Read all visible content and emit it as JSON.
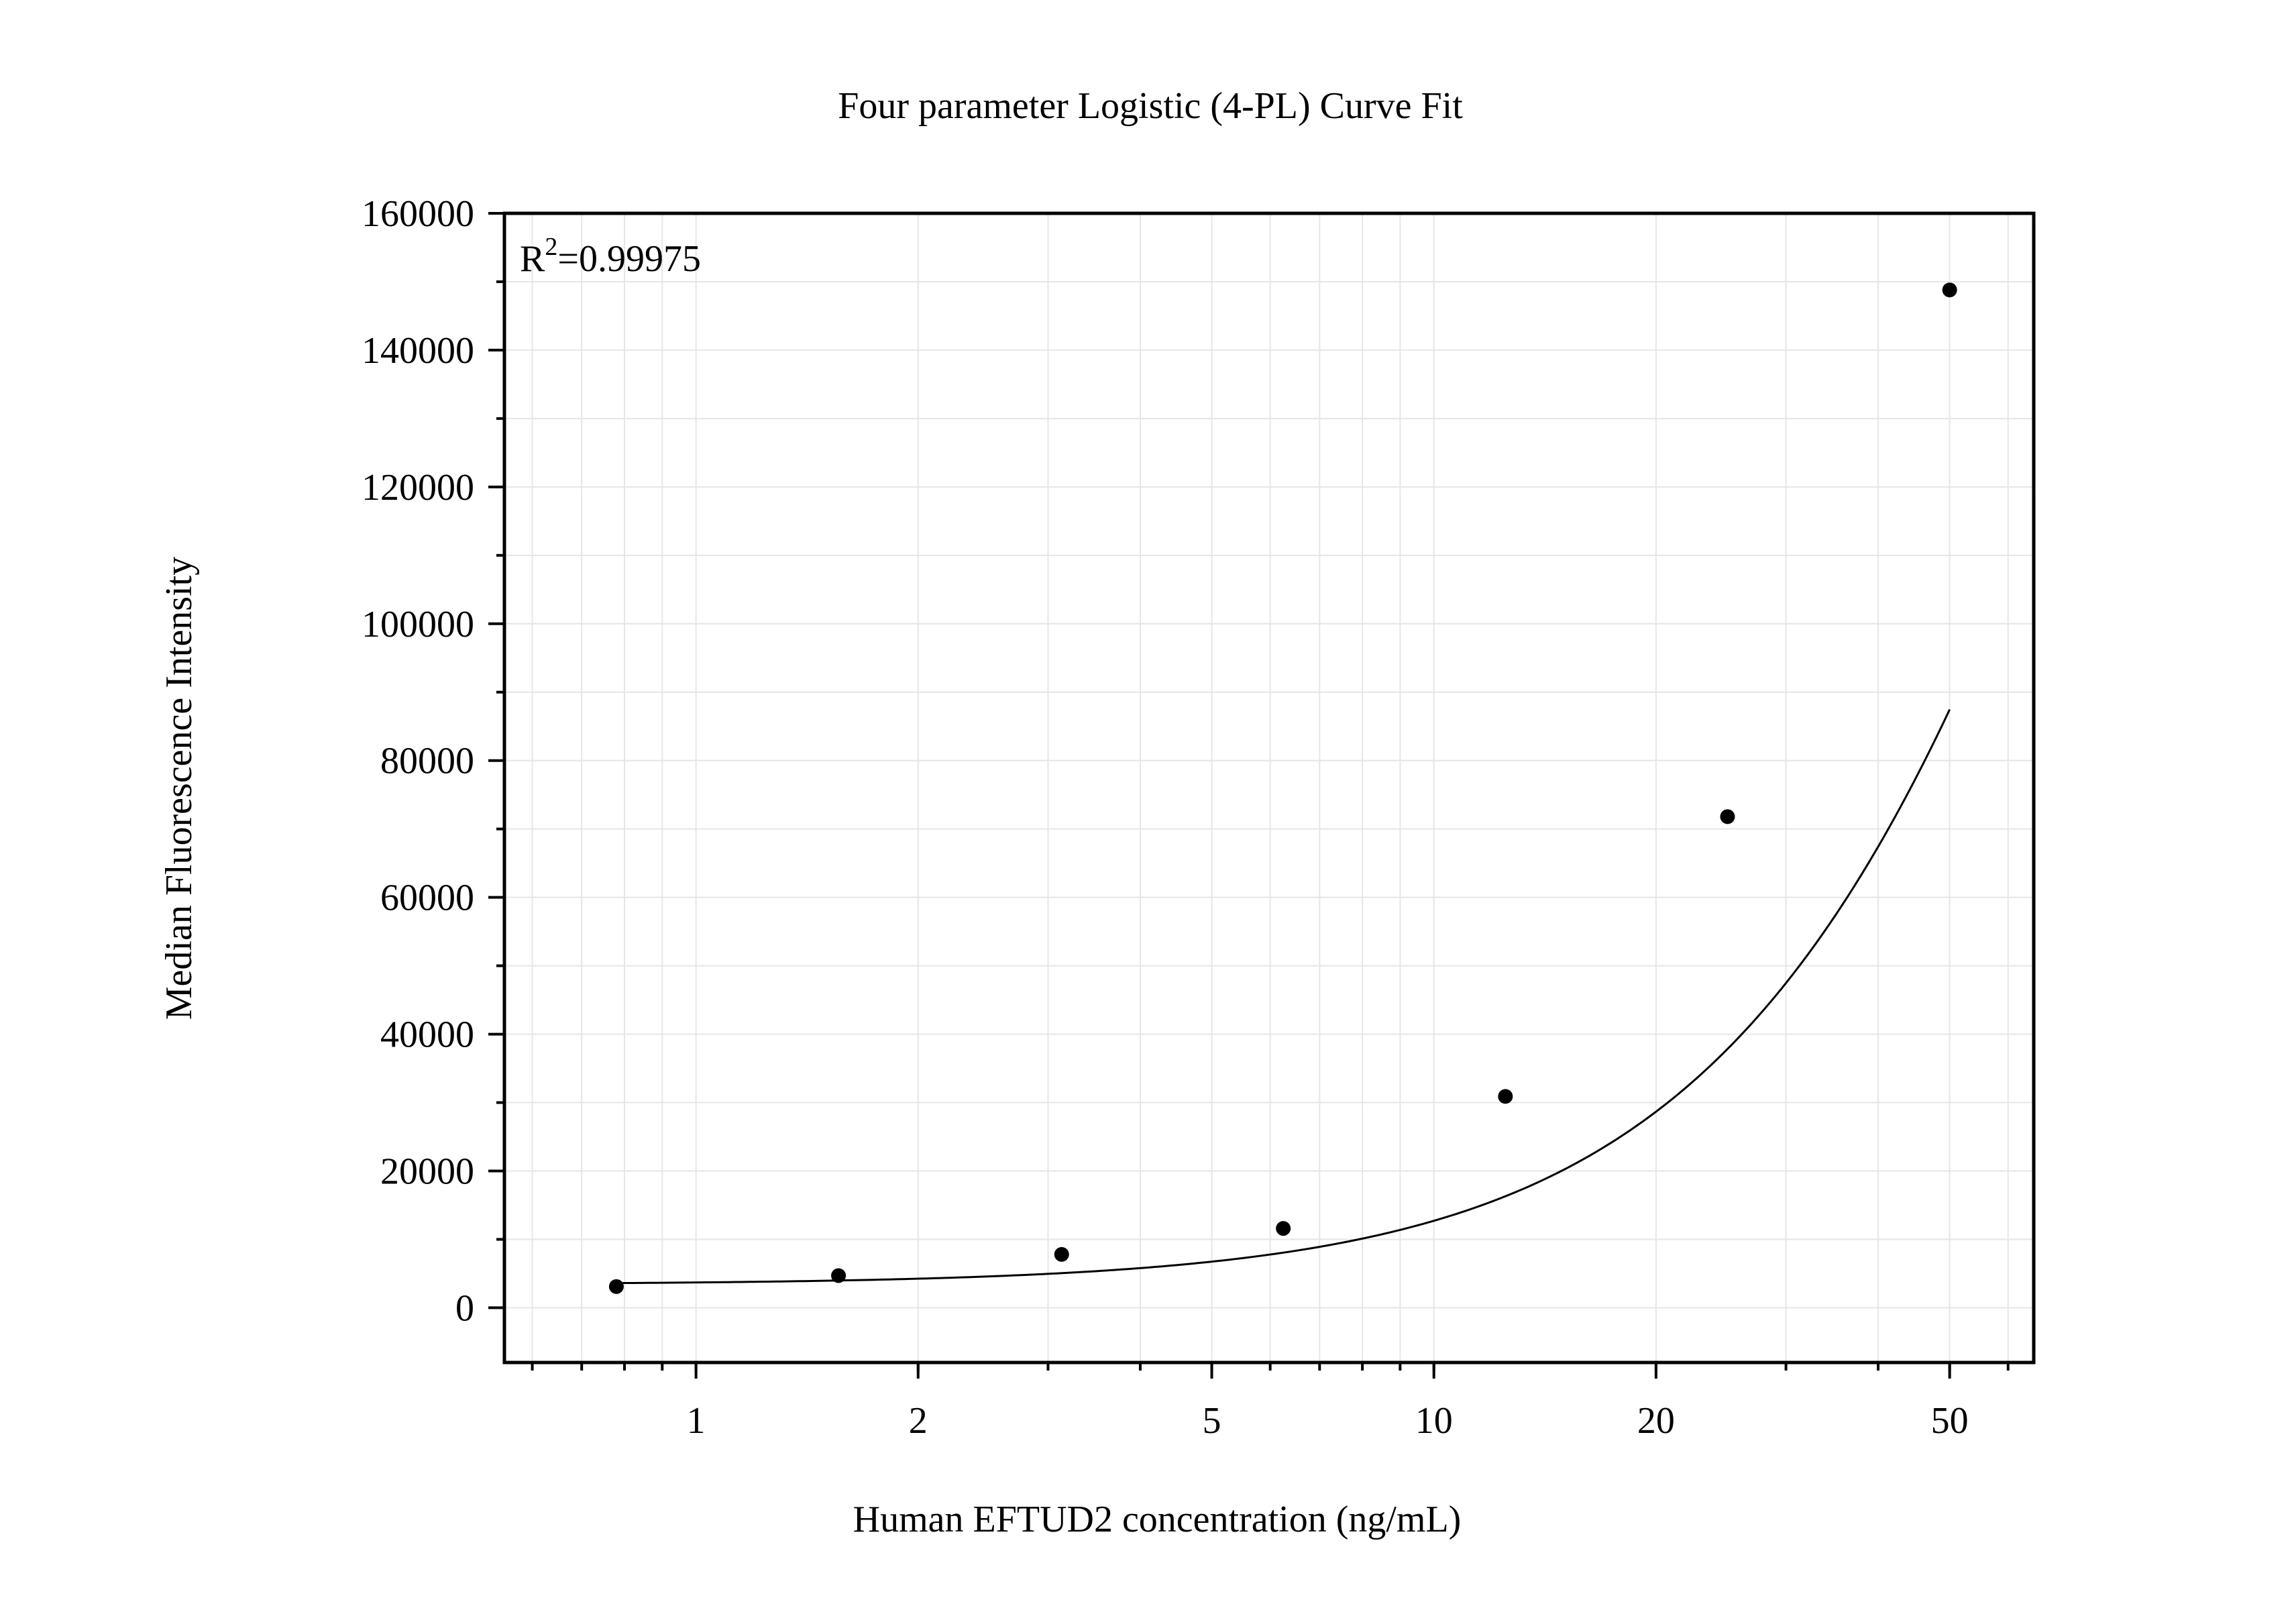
{
  "chart_data": {
    "type": "scatter",
    "title": "Four parameter Logistic (4-PL) Curve Fit",
    "xlabel": "Human EFTUD2 concentration (ng/mL)",
    "ylabel": "Median Fluorescence Intensity",
    "x_scale": "log",
    "xlim": [
      0.55,
      65
    ],
    "ylim": [
      -8000,
      160000
    ],
    "x_ticks": [
      1,
      2,
      5,
      10,
      20,
      50
    ],
    "x_tick_labels": [
      "1",
      "2",
      "5",
      "10",
      "20",
      "50"
    ],
    "y_ticks": [
      0,
      20000,
      40000,
      60000,
      80000,
      100000,
      120000,
      140000,
      160000
    ],
    "y_tick_labels": [
      "0",
      "20000",
      "40000",
      "60000",
      "80000",
      "100000",
      "120000",
      "140000",
      "160000"
    ],
    "grid": true,
    "annotation": {
      "base": "R",
      "superscript": "2",
      "text": "=0.99975"
    },
    "series": [
      {
        "points": [
          {
            "x": 0.78,
            "y": 3100
          },
          {
            "x": 1.56,
            "y": 4700
          },
          {
            "x": 3.13,
            "y": 7800
          },
          {
            "x": 6.25,
            "y": 11600
          },
          {
            "x": 12.5,
            "y": 30900
          },
          {
            "x": 25,
            "y": 71800
          },
          {
            "x": 50,
            "y": 148800
          }
        ]
      }
    ],
    "fit_curve": {
      "model": "4PL",
      "bottom": 3400,
      "top": 400000,
      "ec50": 120,
      "hill": 1.5,
      "x_range": [
        0.78,
        50
      ]
    },
    "colors": {
      "axis": "#000000",
      "grid": "#e6e6e6",
      "marker": "#000000",
      "curve": "#000000"
    }
  }
}
